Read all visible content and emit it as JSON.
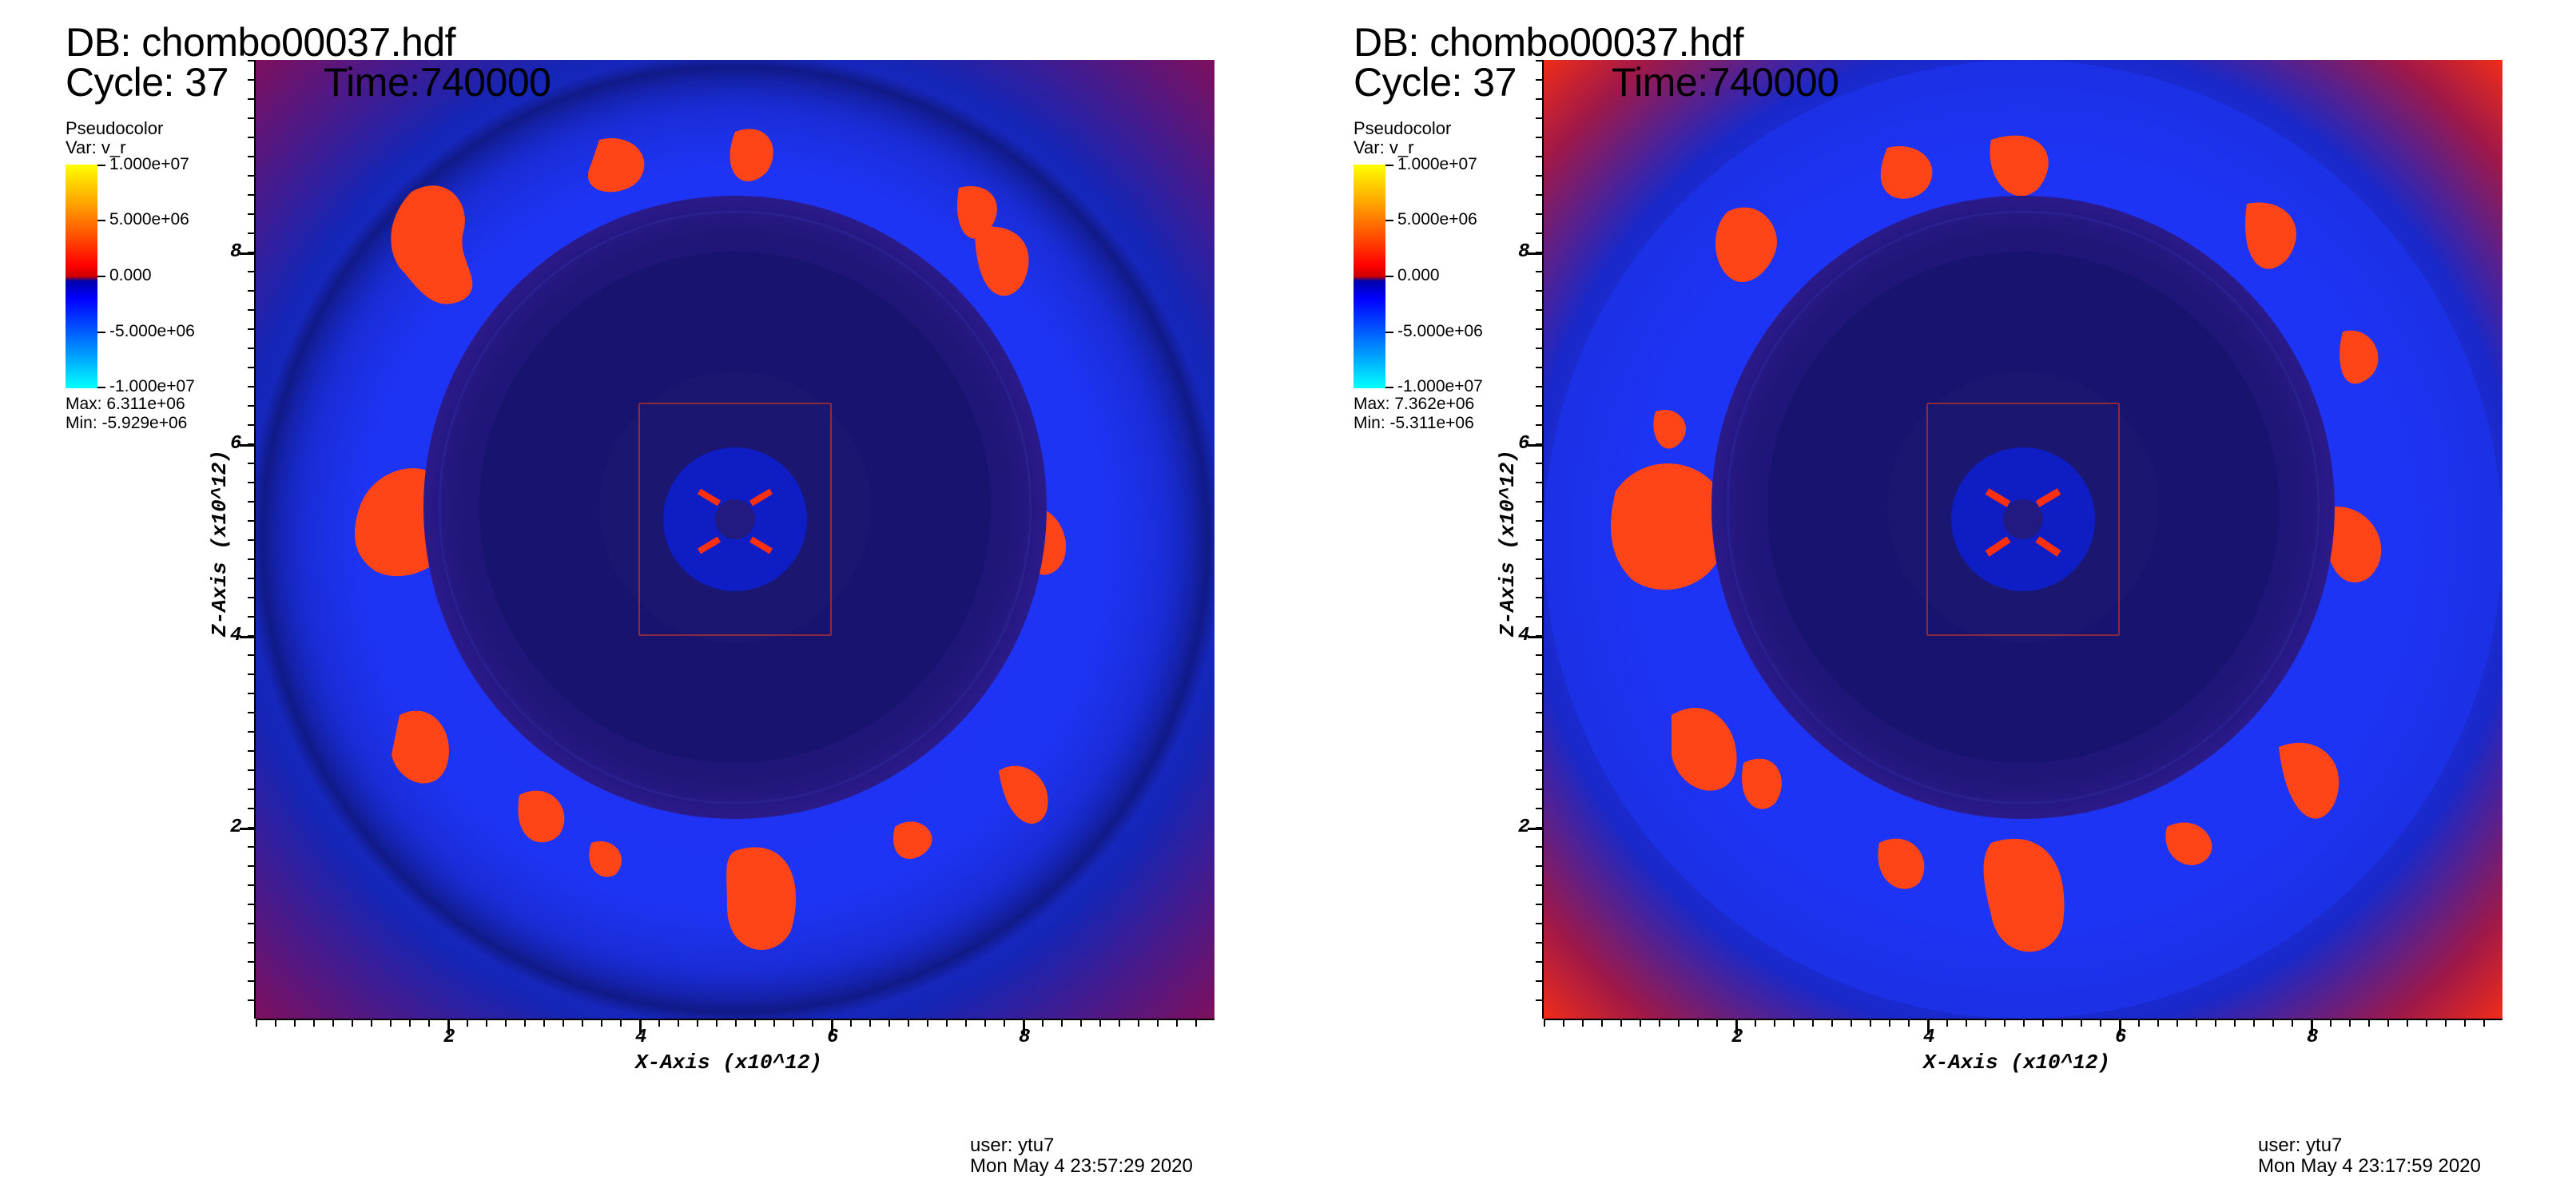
{
  "panels": [
    {
      "db_title": "DB: chombo00037.hdf",
      "cycle": "Cycle: 37",
      "time": "Time:740000",
      "legend": {
        "title": "Pseudocolor",
        "var": "Var: v_r",
        "ticks": [
          "1.000e+07",
          "5.000e+06",
          "0.000",
          "-5.000e+06",
          "-1.000e+07"
        ],
        "max": "Max:  6.311e+06",
        "min": "Min: -5.929e+06"
      },
      "x_axis_title": "X-Axis (x10^12)",
      "y_axis_title": "Z-Axis (x10^12)",
      "x_ticks": [
        "2",
        "4",
        "6",
        "8"
      ],
      "y_ticks": [
        "8",
        "6",
        "4",
        "2"
      ],
      "user": "user: ytu7",
      "date": "Mon May  4 23:57:29 2020"
    },
    {
      "db_title": "DB: chombo00037.hdf",
      "cycle": "Cycle: 37",
      "time": "Time:740000",
      "legend": {
        "title": "Pseudocolor",
        "var": "Var: v_r",
        "ticks": [
          "1.000e+07",
          "5.000e+06",
          "0.000",
          "-5.000e+06",
          "-1.000e+07"
        ],
        "max": "Max:  7.362e+06",
        "min": "Min: -5.311e+06"
      },
      "x_axis_title": "X-Axis (x10^12)",
      "y_axis_title": "Z-Axis (x10^12)",
      "x_ticks": [
        "2",
        "4",
        "6",
        "8"
      ],
      "y_ticks": [
        "8",
        "6",
        "4",
        "2"
      ],
      "user": "user: ytu7",
      "date": "Mon May  4 23:17:59 2020"
    }
  ],
  "colors": {
    "background_blue": "#1e2cf0",
    "inner_disk": "#18136e",
    "core_ring": "#221a82",
    "plume_red": "#ff3a10",
    "plume_orange": "#ff6a20",
    "corner_red": "#c01838",
    "cross_blue": "#0a20c8"
  }
}
